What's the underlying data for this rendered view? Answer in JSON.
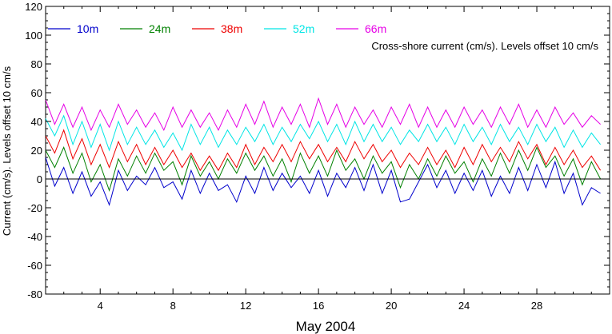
{
  "chart_data": {
    "type": "line",
    "title": "",
    "annotation": "Cross-shore current (cm/s). Levels offset 10 cm/s",
    "xlabel": "May 2004",
    "ylabel": "Current (cm/s). Levels offset 10 cm/s",
    "x_unit": "day of May 2004",
    "xlim": [
      1,
      32
    ],
    "ylim": [
      -80,
      120
    ],
    "x_ticks": [
      4,
      8,
      12,
      16,
      20,
      24,
      28
    ],
    "x_tick_labels": [
      "4",
      "8",
      "12",
      "16",
      "20",
      "24",
      "28"
    ],
    "y_ticks": [
      -80,
      -60,
      -40,
      -20,
      0,
      20,
      40,
      60,
      80,
      100,
      120
    ],
    "y_tick_labels": [
      "-80",
      "-60",
      "-40",
      "-20",
      "0",
      "20",
      "40",
      "60",
      "80",
      "100",
      "120"
    ],
    "zero_line": true,
    "grid": false,
    "legend_position": "top-left",
    "series": [
      {
        "name": "10m",
        "color": "#0000cc",
        "x": [
          1,
          1.5,
          2,
          2.5,
          3,
          3.5,
          4,
          4.5,
          5,
          5.5,
          6,
          6.5,
          7,
          7.5,
          8,
          8.5,
          9,
          9.5,
          10,
          10.5,
          11,
          11.5,
          12,
          12.5,
          13,
          13.5,
          14,
          14.5,
          15,
          15.5,
          16,
          16.5,
          17,
          17.5,
          18,
          18.5,
          19,
          19.5,
          20,
          20.5,
          21,
          21.5,
          22,
          22.5,
          23,
          23.5,
          24,
          24.5,
          25,
          25.5,
          26,
          26.5,
          27,
          27.5,
          28,
          28.5,
          29,
          29.5,
          30,
          30.5,
          31,
          31.5
        ],
        "y": [
          15,
          -5,
          8,
          -10,
          5,
          -12,
          -2,
          -18,
          6,
          -8,
          2,
          -4,
          8,
          -6,
          -2,
          -14,
          6,
          -10,
          4,
          -8,
          -4,
          -16,
          2,
          -10,
          8,
          -8,
          4,
          -6,
          2,
          -10,
          6,
          -12,
          4,
          -6,
          8,
          -8,
          10,
          -10,
          6,
          -16,
          -14,
          -2,
          10,
          -6,
          6,
          -10,
          4,
          -8,
          6,
          -12,
          2,
          -10,
          8,
          -8,
          10,
          -6,
          12,
          -10,
          4,
          -18,
          -6,
          -10
        ]
      },
      {
        "name": "24m",
        "color": "#008000",
        "x": [
          1,
          1.5,
          2,
          2.5,
          3,
          3.5,
          4,
          4.5,
          5,
          5.5,
          6,
          6.5,
          7,
          7.5,
          8,
          8.5,
          9,
          9.5,
          10,
          10.5,
          11,
          11.5,
          12,
          12.5,
          13,
          13.5,
          14,
          14.5,
          15,
          15.5,
          16,
          16.5,
          17,
          17.5,
          18,
          18.5,
          19,
          19.5,
          20,
          20.5,
          21,
          21.5,
          22,
          22.5,
          23,
          23.5,
          24,
          24.5,
          25,
          25.5,
          26,
          26.5,
          27,
          27.5,
          28,
          28.5,
          29,
          29.5,
          30,
          30.5,
          31,
          31.5
        ],
        "y": [
          20,
          8,
          22,
          4,
          18,
          -2,
          10,
          -8,
          14,
          2,
          16,
          4,
          18,
          6,
          12,
          -4,
          16,
          2,
          12,
          0,
          14,
          4,
          18,
          6,
          16,
          2,
          14,
          -2,
          18,
          4,
          16,
          2,
          20,
          6,
          14,
          0,
          16,
          4,
          12,
          -6,
          10,
          0,
          14,
          2,
          16,
          4,
          12,
          -2,
          14,
          2,
          18,
          4,
          20,
          6,
          22,
          8,
          16,
          2,
          14,
          -4,
          12,
          0
        ]
      },
      {
        "name": "38m",
        "color": "#ee0000",
        "x": [
          1,
          1.5,
          2,
          2.5,
          3,
          3.5,
          4,
          4.5,
          5,
          5.5,
          6,
          6.5,
          7,
          7.5,
          8,
          8.5,
          9,
          9.5,
          10,
          10.5,
          11,
          11.5,
          12,
          12.5,
          13,
          13.5,
          14,
          14.5,
          15,
          15.5,
          16,
          16.5,
          17,
          17.5,
          18,
          18.5,
          19,
          19.5,
          20,
          20.5,
          21,
          21.5,
          22,
          22.5,
          23,
          23.5,
          24,
          24.5,
          25,
          25.5,
          26,
          26.5,
          27,
          27.5,
          28,
          28.5,
          29,
          29.5,
          30,
          30.5,
          31,
          31.5
        ],
        "y": [
          30,
          18,
          34,
          14,
          28,
          10,
          24,
          8,
          26,
          12,
          24,
          10,
          22,
          10,
          20,
          8,
          18,
          6,
          16,
          6,
          18,
          8,
          24,
          10,
          22,
          12,
          24,
          12,
          26,
          14,
          24,
          12,
          22,
          12,
          26,
          14,
          24,
          12,
          20,
          8,
          18,
          10,
          22,
          10,
          20,
          8,
          22,
          10,
          24,
          12,
          22,
          12,
          26,
          14,
          24,
          10,
          22,
          10,
          20,
          8,
          16,
          6
        ]
      },
      {
        "name": "52m",
        "color": "#00e5e5",
        "x": [
          1,
          1.5,
          2,
          2.5,
          3,
          3.5,
          4,
          4.5,
          5,
          5.5,
          6,
          6.5,
          7,
          7.5,
          8,
          8.5,
          9,
          9.5,
          10,
          10.5,
          11,
          11.5,
          12,
          12.5,
          13,
          13.5,
          14,
          14.5,
          15,
          15.5,
          16,
          16.5,
          17,
          17.5,
          18,
          18.5,
          19,
          19.5,
          20,
          20.5,
          21,
          21.5,
          22,
          22.5,
          23,
          23.5,
          24,
          24.5,
          25,
          25.5,
          26,
          26.5,
          27,
          27.5,
          28,
          28.5,
          29,
          29.5,
          30,
          30.5,
          31,
          31.5
        ],
        "y": [
          42,
          30,
          44,
          24,
          40,
          22,
          38,
          20,
          40,
          24,
          36,
          24,
          34,
          22,
          32,
          20,
          38,
          24,
          36,
          22,
          34,
          24,
          36,
          26,
          38,
          24,
          36,
          26,
          38,
          28,
          40,
          26,
          38,
          24,
          40,
          26,
          38,
          26,
          36,
          24,
          34,
          26,
          38,
          26,
          36,
          24,
          38,
          26,
          36,
          24,
          38,
          26,
          36,
          24,
          38,
          26,
          36,
          22,
          34,
          22,
          32,
          24
        ]
      },
      {
        "name": "66m",
        "color": "#e600e6",
        "x": [
          1,
          1.5,
          2,
          2.5,
          3,
          3.5,
          4,
          4.5,
          5,
          5.5,
          6,
          6.5,
          7,
          7.5,
          8,
          8.5,
          9,
          9.5,
          10,
          10.5,
          11,
          11.5,
          12,
          12.5,
          13,
          13.5,
          14,
          14.5,
          15,
          15.5,
          16,
          16.5,
          17,
          17.5,
          18,
          18.5,
          19,
          19.5,
          20,
          20.5,
          21,
          21.5,
          22,
          22.5,
          23,
          23.5,
          24,
          24.5,
          25,
          25.5,
          26,
          26.5,
          27,
          27.5,
          28,
          28.5,
          29,
          29.5,
          30,
          30.5,
          31,
          31.5
        ],
        "y": [
          55,
          38,
          52,
          36,
          50,
          34,
          48,
          36,
          52,
          38,
          48,
          36,
          46,
          34,
          50,
          36,
          48,
          36,
          46,
          34,
          48,
          36,
          52,
          38,
          54,
          36,
          50,
          38,
          52,
          36,
          56,
          38,
          52,
          36,
          50,
          38,
          48,
          36,
          50,
          38,
          52,
          36,
          50,
          36,
          48,
          36,
          50,
          38,
          48,
          36,
          50,
          38,
          52,
          36,
          48,
          36,
          50,
          38,
          46,
          36,
          44,
          38
        ]
      }
    ]
  }
}
